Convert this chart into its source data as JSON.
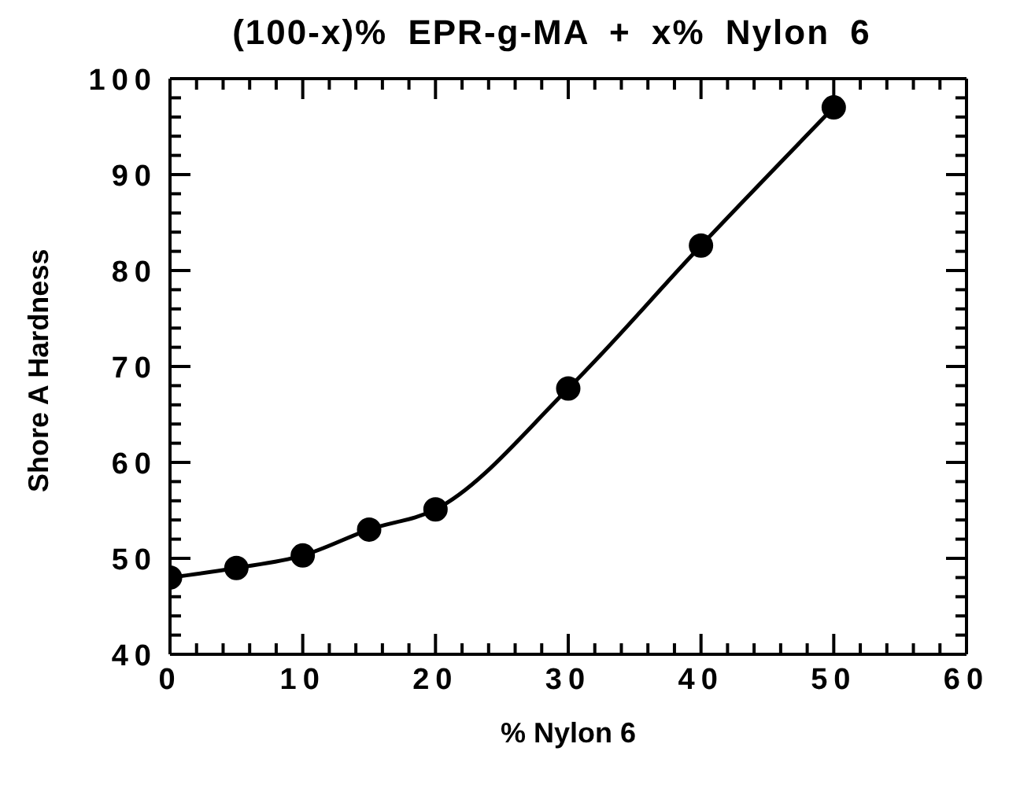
{
  "chart_data": {
    "type": "line",
    "title": "(100-x)% EPR-g-MA + x% Nylon 6",
    "xlabel": "% Nylon 6",
    "ylabel": "Shore A Hardness",
    "x": [
      0,
      5,
      10,
      15,
      20,
      30,
      40,
      50
    ],
    "series": [
      {
        "color": "#000000",
        "values": [
          48,
          49,
          50.3,
          53,
          55.1,
          67.7,
          82.6,
          97
        ]
      }
    ],
    "xlim": [
      0,
      60
    ],
    "xticks": [
      0,
      {
        "value": 2,
        "label": null
      },
      {
        "value": 4,
        "label": null
      },
      {
        "value": 6,
        "label": null
      },
      {
        "value": 8,
        "label": null
      },
      10,
      {
        "value": 12,
        "label": null
      },
      {
        "value": 14,
        "label": null
      },
      {
        "value": 16,
        "label": null
      },
      {
        "value": 18,
        "label": null
      },
      20,
      {
        "value": 22,
        "label": null
      },
      {
        "value": 24,
        "label": null
      },
      {
        "value": 26,
        "label": null
      },
      {
        "value": 28,
        "label": null
      },
      30,
      {
        "value": 32,
        "label": null
      },
      {
        "value": 34,
        "label": null
      },
      {
        "value": 36,
        "label": null
      },
      {
        "value": 38,
        "label": null
      },
      40,
      {
        "value": 42,
        "label": null
      },
      {
        "value": 44,
        "label": null
      },
      {
        "value": 46,
        "label": null
      },
      {
        "value": 48,
        "label": null
      },
      50,
      {
        "value": 52,
        "label": null
      },
      {
        "value": 54,
        "label": null
      },
      {
        "value": 56,
        "label": null
      },
      {
        "value": 58,
        "label": null
      },
      60
    ],
    "ylim": [
      40,
      100
    ],
    "yticks": [
      40,
      {
        "value": 42,
        "label": null
      },
      {
        "value": 44,
        "label": null
      },
      {
        "value": 46,
        "label": null
      },
      {
        "value": 48,
        "label": null
      },
      50,
      {
        "value": 52,
        "label": null
      },
      {
        "value": 54,
        "label": null
      },
      {
        "value": 56,
        "label": null
      },
      {
        "value": 58,
        "label": null
      },
      60,
      {
        "value": 62,
        "label": null
      },
      {
        "value": 64,
        "label": null
      },
      {
        "value": 66,
        "label": null
      },
      {
        "value": 68,
        "label": null
      },
      70,
      {
        "value": 72,
        "label": null
      },
      {
        "value": 74,
        "label": null
      },
      {
        "value": 76,
        "label": null
      },
      {
        "value": 78,
        "label": null
      },
      80,
      {
        "value": 82,
        "label": null
      },
      {
        "value": 84,
        "label": null
      },
      {
        "value": 86,
        "label": null
      },
      {
        "value": 88,
        "label": null
      },
      90,
      {
        "value": 92,
        "label": null
      },
      {
        "value": 94,
        "label": null
      },
      {
        "value": 96,
        "label": null
      },
      {
        "value": 98,
        "label": null
      },
      100
    ],
    "marker": "circle",
    "line_style": "solid",
    "grid": false,
    "legend": false
  }
}
